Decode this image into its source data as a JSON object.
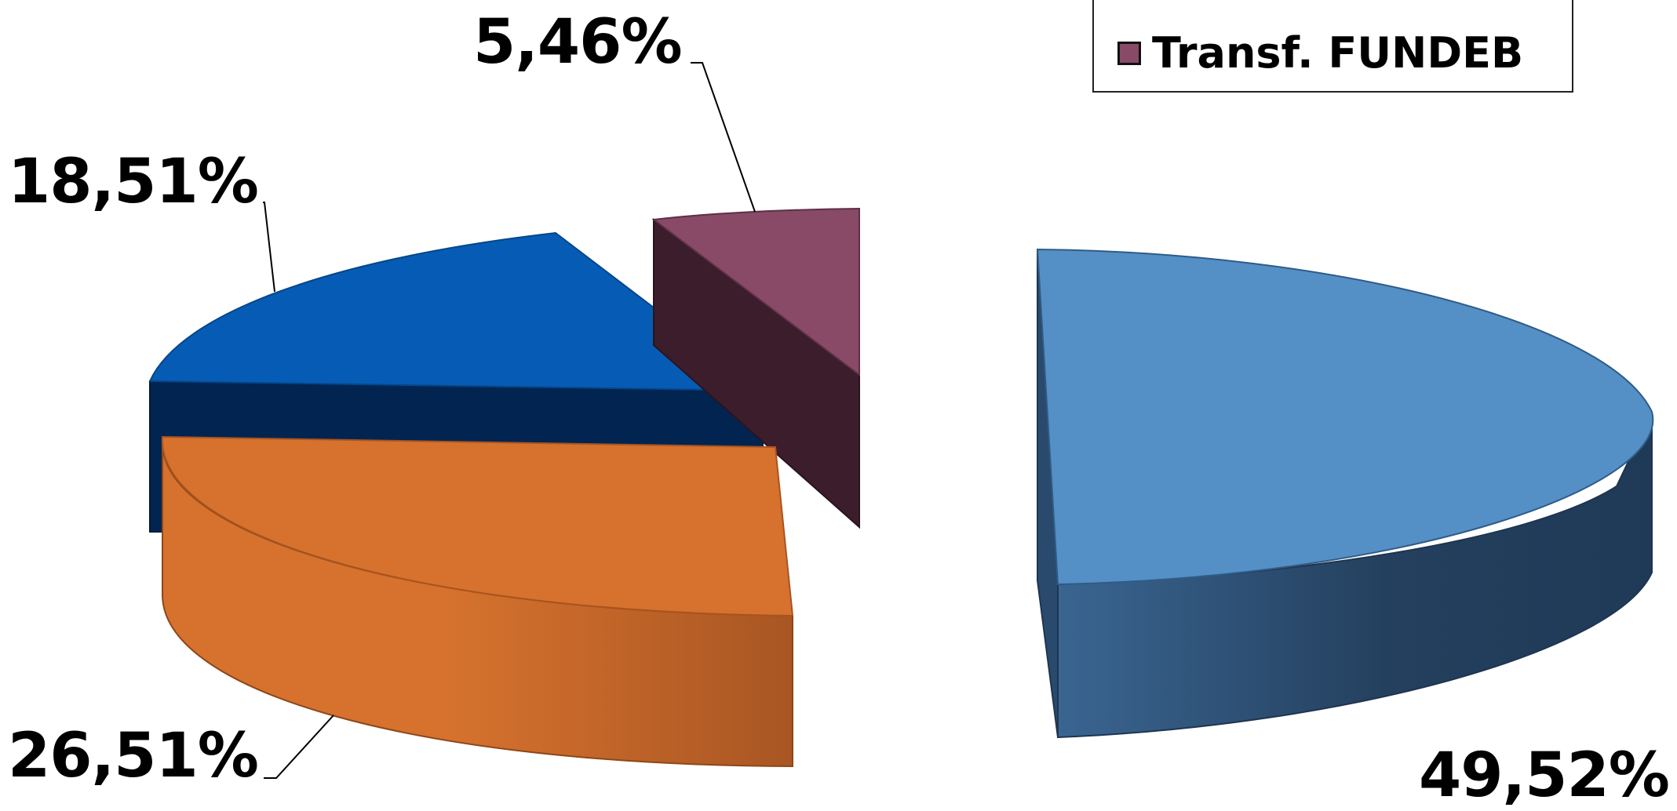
{
  "chart_data": {
    "type": "pie",
    "title": "",
    "three_d": true,
    "exploded": true,
    "slices": [
      {
        "label": "Transf. FUNDEB",
        "value": 5.46,
        "value_label": "5,46%",
        "color": "#884A66"
      },
      {
        "label": "",
        "value": 49.52,
        "value_label": "49,52%",
        "color": "#548FC6"
      },
      {
        "label": "",
        "value": 26.51,
        "value_label": "26,51%",
        "color": "#D6722E"
      },
      {
        "label": "",
        "value": 18.51,
        "value_label": "18,51%",
        "color": "#065CB4"
      }
    ],
    "legend": {
      "placement": "top-right",
      "entries": [
        {
          "label": "Transf. FUNDEB",
          "color": "#884A66"
        }
      ]
    }
  }
}
